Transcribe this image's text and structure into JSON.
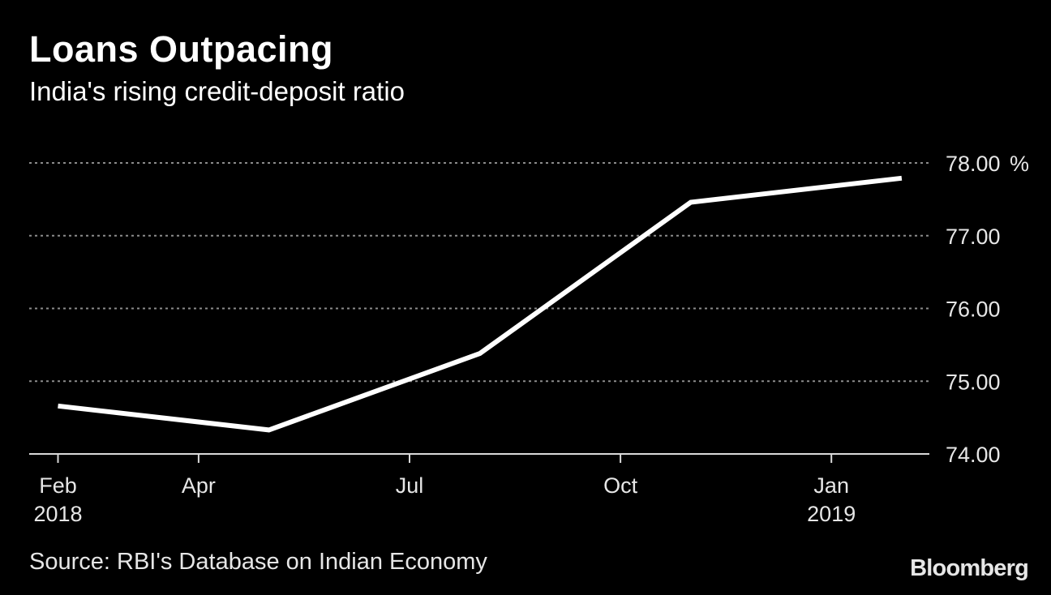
{
  "header": {
    "title": "Loans Outpacing",
    "subtitle": "India's rising credit-deposit ratio"
  },
  "footer": {
    "source": "Source: RBI's Database on Indian Economy",
    "logo": "Bloomberg"
  },
  "colors": {
    "background": "#000000",
    "line": "#ffffff",
    "grid": "#8c8c8c",
    "axis": "#d9d9d9",
    "text": "#e6e6e6"
  },
  "chart_data": {
    "type": "line",
    "x_unit": "month",
    "x_range": [
      "2018-02",
      "2019-01"
    ],
    "ylim": [
      74,
      78
    ],
    "y_unit": "%",
    "y_ticks": [
      {
        "value": 74,
        "label": "74.00"
      },
      {
        "value": 75,
        "label": "75.00"
      },
      {
        "value": 76,
        "label": "76.00"
      },
      {
        "value": 77,
        "label": "77.00"
      },
      {
        "value": 78,
        "label": "78.00"
      }
    ],
    "y_unit_label": "%",
    "x_ticks": [
      {
        "date": "2018-02",
        "label": "Feb",
        "sublabel": "2018"
      },
      {
        "date": "2018-04",
        "label": "Apr",
        "sublabel": ""
      },
      {
        "date": "2018-07",
        "label": "Jul",
        "sublabel": ""
      },
      {
        "date": "2018-10",
        "label": "Oct",
        "sublabel": ""
      },
      {
        "date": "2019-01",
        "label": "Jan",
        "sublabel": "2019"
      }
    ],
    "grid": true,
    "series": [
      {
        "points": [
          {
            "date": "2018-02",
            "value": 74.66
          },
          {
            "date": "2018-05",
            "value": 74.33
          },
          {
            "date": "2018-08",
            "value": 75.38
          },
          {
            "date": "2018-11",
            "value": 77.46
          },
          {
            "date": "2019-02",
            "value": 77.79
          }
        ]
      }
    ]
  }
}
